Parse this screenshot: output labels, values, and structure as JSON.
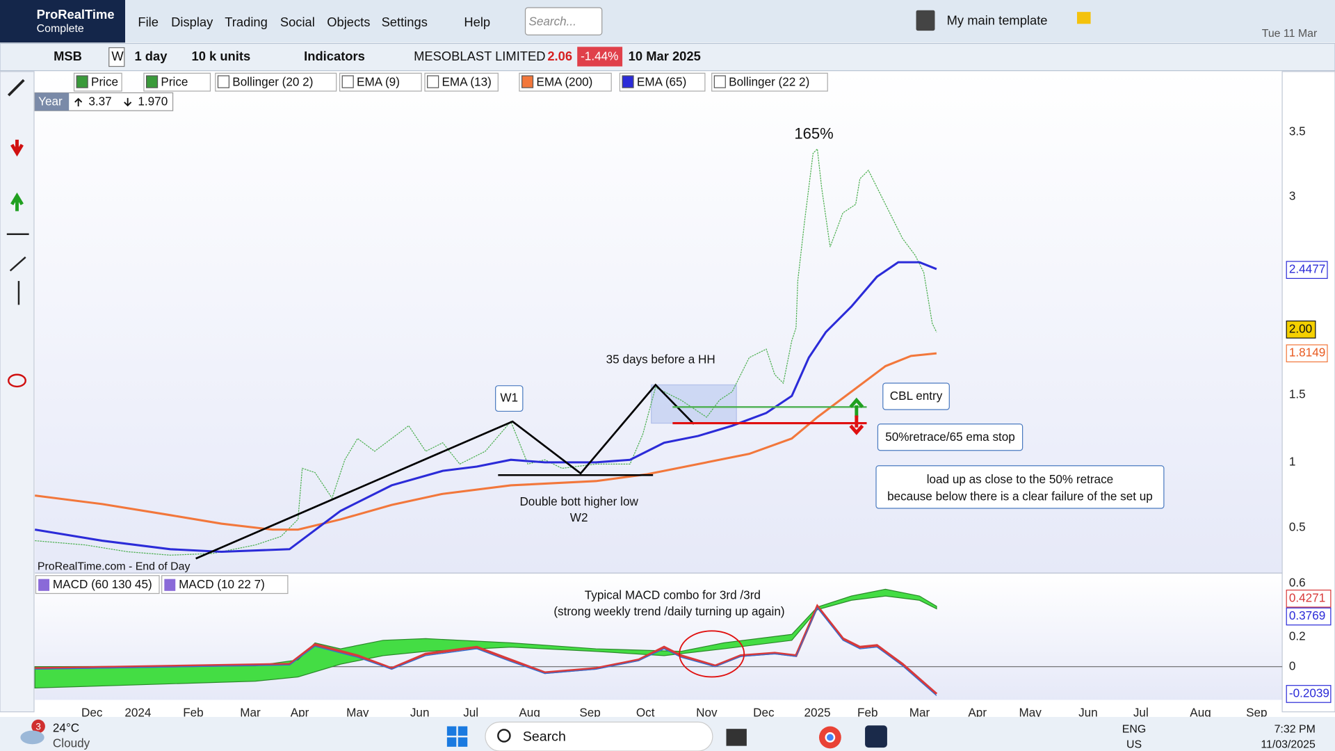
{
  "app": {
    "name": "ProRealTime",
    "edition": "Complete"
  },
  "menu": [
    "File",
    "Display",
    "Trading",
    "Social",
    "Objects",
    "Settings",
    "Help"
  ],
  "search_placeholder": "Search...",
  "template": "My main template",
  "header_date": "Tue 11 Mar",
  "toolbar": {
    "symbol": "MSB",
    "period": "W",
    "timeframe": "1 day",
    "units": "10 k units",
    "indicators": "Indicators",
    "instrument": "MESOBLAST LIMITED",
    "price": "2.06",
    "change": "-1.44%",
    "date": "10 Mar 2025"
  },
  "legend": [
    "Price",
    "Price",
    "Bollinger (20 2)",
    "EMA (9)",
    "EMA (13)",
    "EMA (200)",
    "EMA (65)",
    "Bollinger (22 2)"
  ],
  "year_box": {
    "label": "Year",
    "high": "3.37",
    "low": "1.970"
  },
  "price_axis": {
    "ticks": [
      "3.5",
      "3",
      "1.5",
      "1",
      "0.5"
    ],
    "ema65": "2.4477",
    "last": "2.00",
    "ema200": "1.8149"
  },
  "macd_legend": [
    "MACD (60 130 45)",
    "MACD (10 22 7)"
  ],
  "macd_axis": {
    "ticks": [
      "0.6",
      "0.2",
      "0"
    ],
    "labels": [
      "0.4271",
      "0.3769",
      "-0.2039"
    ]
  },
  "x_axis": [
    "Dec",
    "2024",
    "Feb",
    "Mar",
    "Apr",
    "May",
    "Jun",
    "Jul",
    "Aug",
    "Sep",
    "Oct",
    "Nov",
    "Dec",
    "2025",
    "Feb",
    "Mar",
    "Apr",
    "May",
    "Jun",
    "Jul",
    "Aug",
    "Sep"
  ],
  "annotations": {
    "peak": "165%",
    "days": "35 days before a HH",
    "w1": "W1",
    "cbl": "CBL entry",
    "stop": "50%retrace/65 ema stop",
    "note": [
      "load up as close to the 50% retrace",
      "because below there is a clear failure of the set up"
    ],
    "double": "Double bott higher low",
    "w2": "W2",
    "macd": [
      "Typical MACD combo for 3rd /3rd",
      "(strong weekly trend /daily turning up again)"
    ]
  },
  "source": "ProRealTime.com - End of Day",
  "taskbar": {
    "badge": "3",
    "temp": "24°C",
    "weather": "Cloudy",
    "search": "Search",
    "lang": "ENG",
    "region": "US",
    "time": "7:32 PM",
    "date": "11/03/2025"
  }
}
